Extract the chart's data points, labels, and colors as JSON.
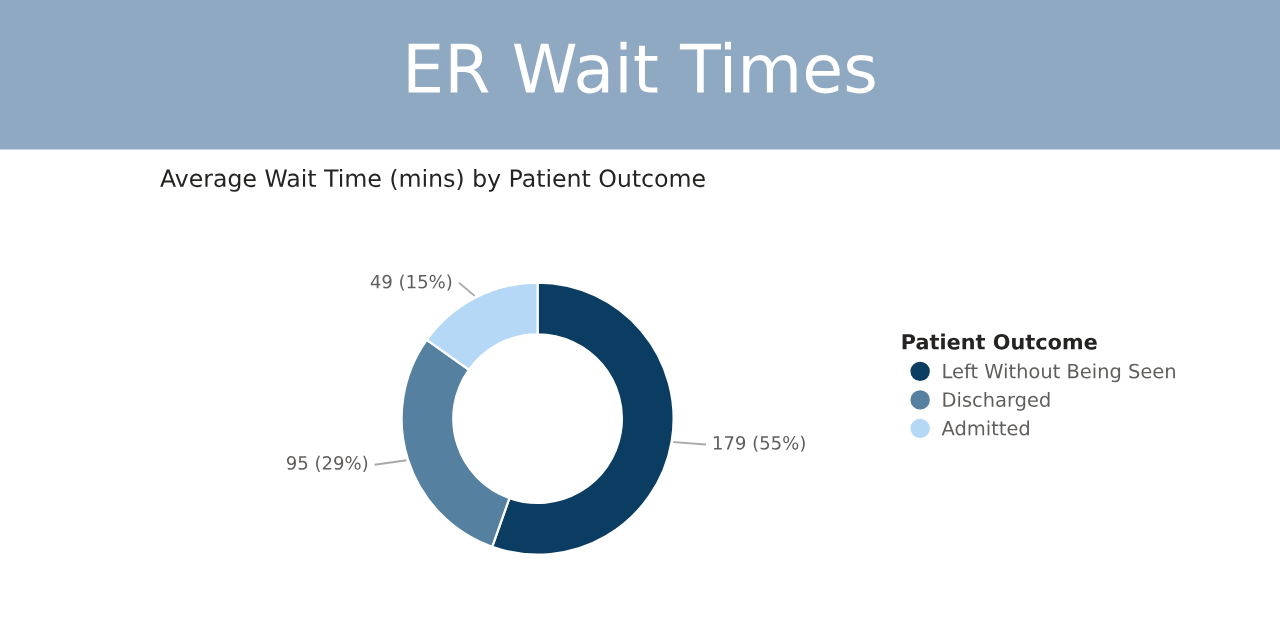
{
  "chart_data": {
    "type": "donut",
    "title": "ER Wait Times",
    "subtitle": "Average Wait Time (mins) by Patient Outcome",
    "legend_title": "Patient Outcome",
    "categories": [
      "Left Without Being Seen",
      "Discharged",
      "Admitted"
    ],
    "values": [
      179,
      95,
      49
    ],
    "colors": [
      "#0b3d62",
      "#55809f",
      "#b5d8f7"
    ],
    "value_labels": [
      "179 (55%)",
      "95 (29%)",
      "49 (15%)"
    ],
    "legend": "right"
  }
}
